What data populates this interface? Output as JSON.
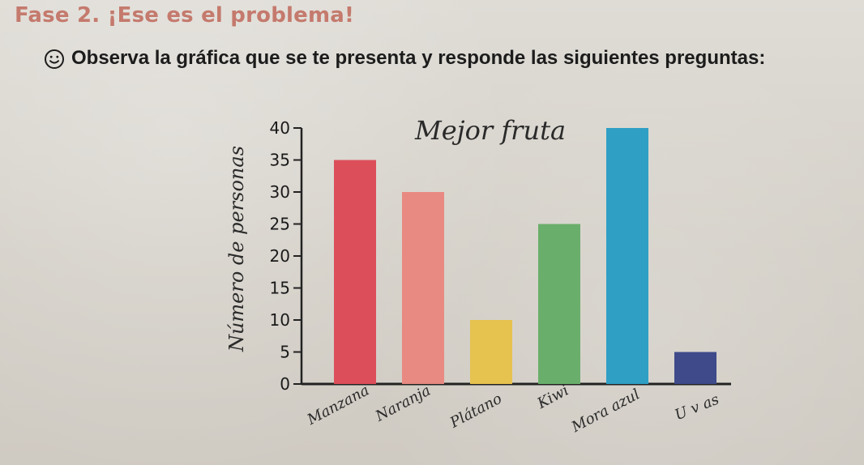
{
  "header": {
    "title": "Fase 2. ¡Ese es el problema!",
    "instruction": "Observa la gráfica que se te presenta y responde las siguientes preguntas:",
    "icon": "smiley-icon"
  },
  "chart_data": {
    "type": "bar",
    "title": "Mejor fruta",
    "xlabel": "",
    "ylabel": "Número de personas",
    "categories": [
      "Manzana",
      "Naranja",
      "Plátano",
      "Kiwi",
      "Mora azul",
      "U v as"
    ],
    "values": [
      35,
      30,
      10,
      25,
      40,
      5
    ],
    "ylim": [
      0,
      40
    ],
    "yticks": [
      0,
      5,
      10,
      15,
      20,
      25,
      30,
      35,
      40
    ],
    "ytick_labels": [
      "0",
      "5",
      "10",
      "15",
      "20",
      "25",
      "30",
      "35",
      "40"
    ],
    "colors": [
      "#dc4f5a",
      "#e88a82",
      "#e6c24f",
      "#6aae6c",
      "#2f9fc4",
      "#3e4a8a"
    ],
    "grid": false,
    "legend": "none"
  }
}
